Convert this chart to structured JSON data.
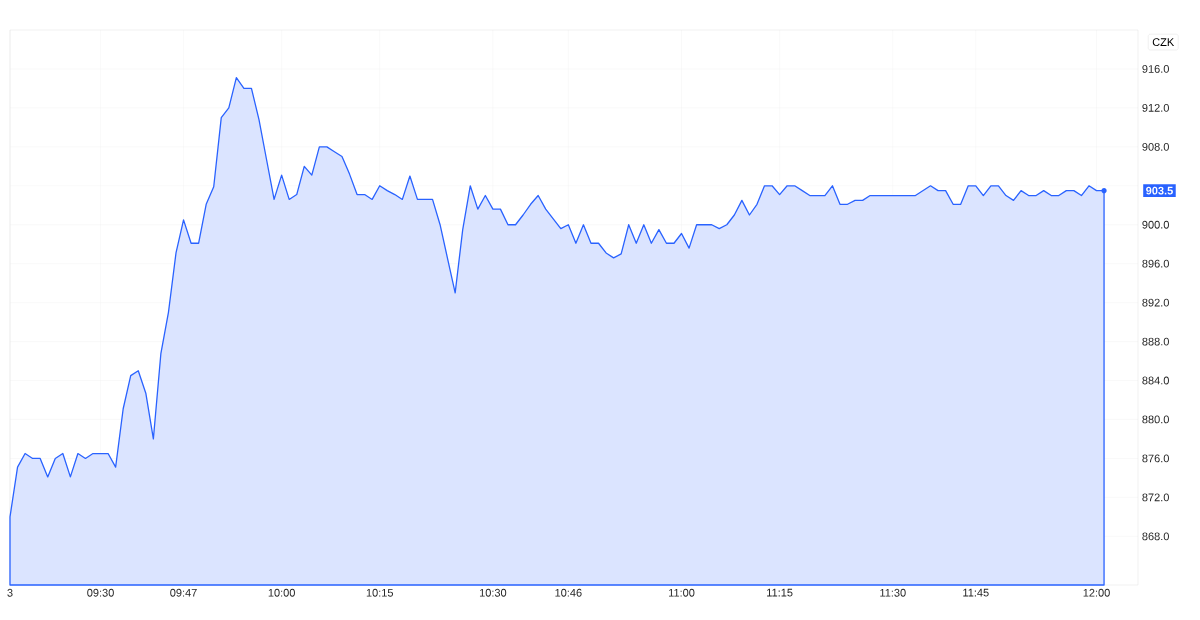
{
  "chart_data": {
    "type": "area",
    "categories": [
      "3",
      null,
      null,
      null,
      null,
      null,
      null,
      null,
      null,
      null,
      null,
      null,
      "09:30",
      null,
      null,
      null,
      null,
      null,
      null,
      null,
      null,
      null,
      null,
      "09:47",
      null,
      null,
      null,
      null,
      null,
      null,
      null,
      null,
      null,
      null,
      null,
      null,
      "10:00",
      null,
      null,
      null,
      null,
      null,
      null,
      null,
      null,
      null,
      null,
      null,
      null,
      "10:15",
      null,
      null,
      null,
      null,
      null,
      null,
      null,
      null,
      null,
      null,
      null,
      null,
      null,
      null,
      "10:30",
      null,
      null,
      null,
      null,
      null,
      null,
      null,
      null,
      null,
      "10:46",
      null,
      null,
      null,
      null,
      null,
      null,
      null,
      null,
      null,
      null,
      null,
      null,
      null,
      null,
      "11:00",
      null,
      null,
      null,
      null,
      null,
      null,
      null,
      null,
      null,
      null,
      null,
      null,
      "11:15",
      null,
      null,
      null,
      null,
      null,
      null,
      null,
      null,
      null,
      null,
      null,
      null,
      null,
      null,
      "11:30",
      null,
      null,
      null,
      null,
      null,
      null,
      null,
      null,
      null,
      null,
      "11:45",
      null,
      null,
      null,
      null,
      null,
      null,
      null,
      null,
      null,
      null,
      null,
      null,
      null,
      null,
      null,
      "12:00",
      null
    ],
    "series": [
      {
        "color": "#2962ff",
        "values": [
          870,
          875.1,
          876.5,
          876,
          876,
          874.1,
          876,
          876.5,
          874.1,
          876.5,
          876,
          876.5,
          876.5,
          876.5,
          875.1,
          881.1,
          884.5,
          885,
          882.7,
          878,
          886.8,
          891,
          897.1,
          900.5,
          898.1,
          898.1,
          902.1,
          903.9,
          911,
          912,
          915.1,
          914,
          914,
          910.8,
          906.7,
          902.6,
          905.1,
          902.6,
          903.1,
          906,
          905.1,
          908,
          908,
          907.5,
          907,
          905.2,
          903.1,
          903.1,
          902.6,
          904,
          903.5,
          903.1,
          902.6,
          905,
          902.6,
          902.6,
          902.6,
          900,
          896.5,
          893,
          899.5,
          904,
          901.6,
          903,
          901.6,
          901.6,
          900,
          900,
          901,
          902.1,
          903,
          901.6,
          900.6,
          899.6,
          900,
          898.1,
          900,
          898.1,
          898.1,
          897.1,
          896.6,
          897,
          900,
          898.1,
          900,
          898.1,
          899.5,
          898.1,
          898.1,
          899.1,
          897.6,
          900,
          900,
          900,
          899.6,
          900,
          901,
          902.5,
          901,
          902.1,
          904,
          904,
          903.1,
          904,
          904,
          903.5,
          903,
          903,
          903,
          904,
          902.1,
          902.1,
          902.5,
          902.5,
          903,
          903,
          903,
          903,
          903,
          903,
          903,
          903.5,
          904,
          903.5,
          903.5,
          902.1,
          902.1,
          904,
          904,
          903,
          904,
          904,
          903,
          902.5,
          903.5,
          903,
          903,
          903.5,
          903,
          903,
          903.5,
          903.5,
          903,
          904,
          903.5,
          903.5
        ]
      }
    ],
    "ylim": [
      863,
      920
    ],
    "yticks": [
      {
        "value": 868,
        "label": "868.0"
      },
      {
        "value": 872,
        "label": "872.0"
      },
      {
        "value": 876,
        "label": "876.0"
      },
      {
        "value": 880,
        "label": "880.0"
      },
      {
        "value": 884,
        "label": "884.0"
      },
      {
        "value": 888,
        "label": "888.0"
      },
      {
        "value": 892,
        "label": "892.0"
      },
      {
        "value": 896,
        "label": "896.0"
      },
      {
        "value": 900,
        "label": "900.0"
      },
      {
        "value": 904,
        "label": null
      },
      {
        "value": 908,
        "label": "908.0"
      },
      {
        "value": 912,
        "label": "912.0"
      },
      {
        "value": 916,
        "label": "916.0"
      }
    ],
    "grid": true,
    "annotations": [
      "CZK",
      "903.5"
    ]
  }
}
